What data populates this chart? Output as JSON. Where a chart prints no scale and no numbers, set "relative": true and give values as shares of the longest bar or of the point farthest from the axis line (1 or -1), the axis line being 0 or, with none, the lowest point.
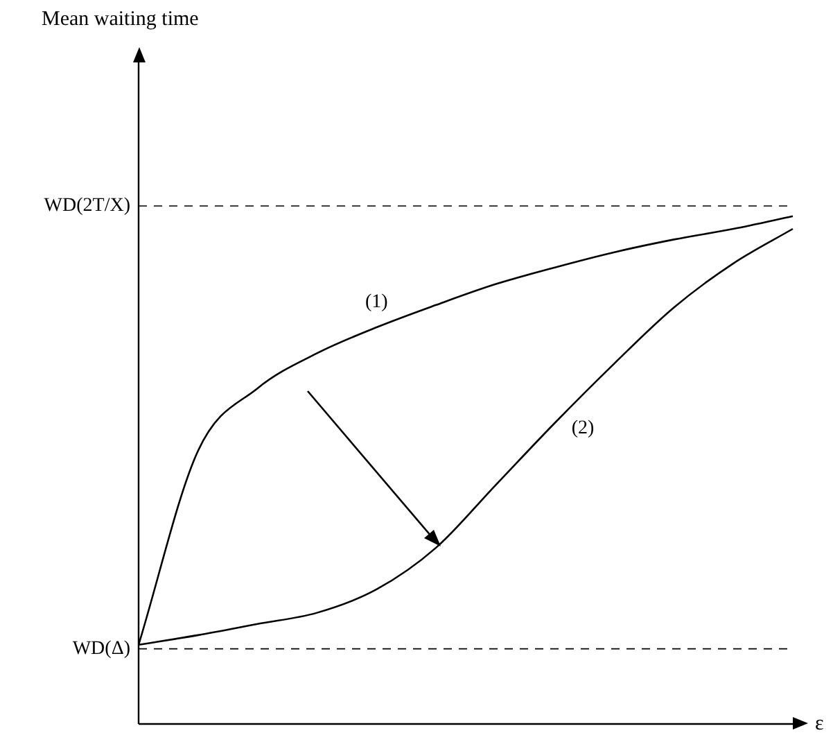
{
  "chart_data": {
    "type": "line",
    "relative": true,
    "annotations": [
      "Mean waiting time"
    ],
    "xlabel": "ε",
    "categories": [
      null,
      null,
      null,
      null,
      null,
      null,
      null,
      null,
      null,
      null,
      null,
      null
    ],
    "series": [
      {
        "name": "(1)",
        "color": "#000000",
        "values": [
          0.156,
          0.538,
          0.661,
          0.73,
          0.781,
          0.825,
          0.866,
          0.899,
          0.929,
          0.954,
          0.975,
          1
        ]
      },
      {
        "name": "(2)",
        "color": "#000000",
        "values": [
          0.156,
          0.175,
          0.197,
          0.219,
          0.265,
          0.347,
          0.47,
          0.593,
          0.71,
          0.82,
          0.907,
          0.975
        ]
      }
    ],
    "ref_lines": [
      {
        "axis": "y",
        "value": 1.02,
        "label": "WD(2T/X)",
        "line_style": "dashed"
      },
      {
        "axis": "y",
        "value": 0.148,
        "label": "WD(Δ)",
        "line_style": "dashed"
      }
    ],
    "legend": false,
    "marker": "none",
    "line_style": "solid"
  }
}
